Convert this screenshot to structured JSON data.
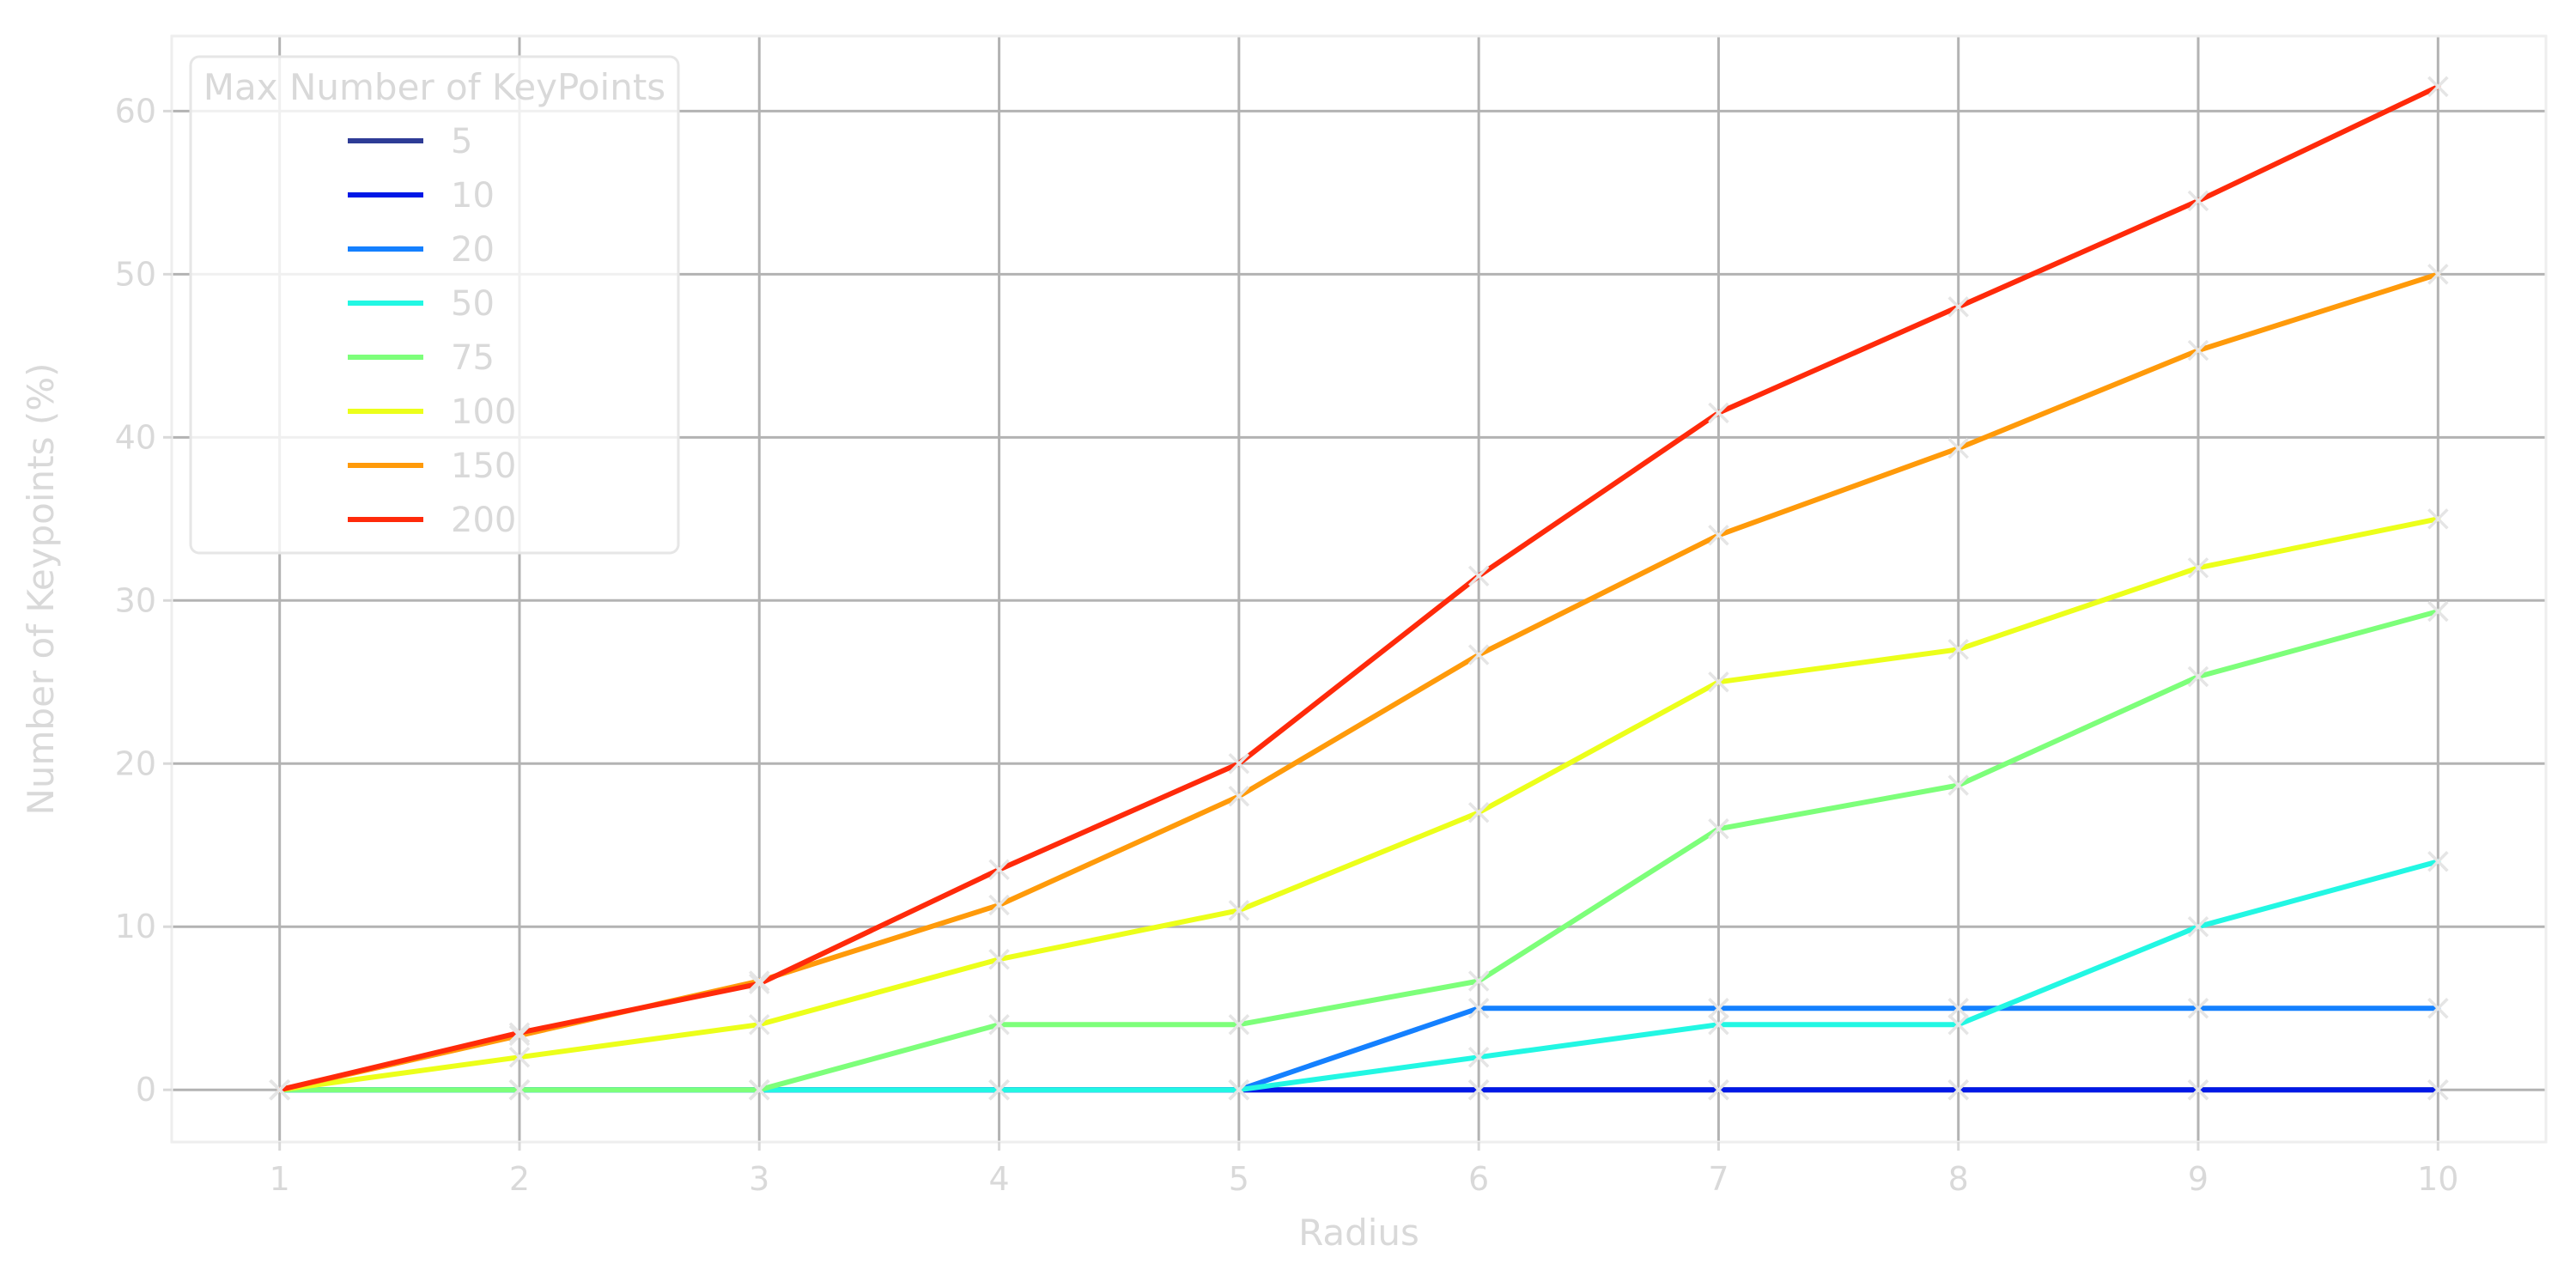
{
  "chart_data": {
    "type": "line",
    "title": "",
    "xlabel": "Radius",
    "ylabel": "Number of Keypoints (%)",
    "x": [
      1,
      2,
      3,
      4,
      5,
      6,
      7,
      8,
      9,
      10
    ],
    "x_ticks": [
      1,
      2,
      3,
      4,
      5,
      6,
      7,
      8,
      9,
      10
    ],
    "y_ticks": [
      0,
      10,
      20,
      30,
      40,
      50,
      60
    ],
    "xlim": [
      0.55,
      10.45
    ],
    "ylim": [
      -3.2,
      64.6
    ],
    "grid": true,
    "marker": "x",
    "legend": {
      "title": "Max Number of KeyPoints",
      "placement": "top-left"
    },
    "series": [
      {
        "name": "5",
        "color": "#2e3c96",
        "values": [
          0,
          0,
          0,
          0,
          0,
          0,
          0,
          0,
          0,
          0
        ]
      },
      {
        "name": "10",
        "color": "#0018e6",
        "values": [
          0,
          0,
          0,
          0,
          0,
          0,
          0,
          0,
          0,
          0
        ]
      },
      {
        "name": "20",
        "color": "#1480ff",
        "values": [
          0,
          0,
          0,
          0,
          0,
          5,
          5,
          5,
          5,
          5
        ]
      },
      {
        "name": "50",
        "color": "#22f7e3",
        "values": [
          0,
          0,
          0,
          0,
          0,
          2,
          4,
          4,
          10,
          14
        ]
      },
      {
        "name": "75",
        "color": "#7dff7a",
        "values": [
          0,
          0,
          0,
          4,
          4,
          6.67,
          16,
          18.67,
          25.33,
          29.33
        ]
      },
      {
        "name": "100",
        "color": "#ecff1a",
        "values": [
          0,
          2,
          4,
          8,
          11,
          17,
          25,
          27,
          32,
          35
        ]
      },
      {
        "name": "150",
        "color": "#ff9a0a",
        "values": [
          0,
          3.33,
          6.67,
          11.33,
          18,
          26.67,
          34,
          39.33,
          45.33,
          50
        ]
      },
      {
        "name": "200",
        "color": "#ff2a0a",
        "values": [
          0,
          3.5,
          6.5,
          13.5,
          20,
          31.5,
          41.5,
          48,
          54.5,
          61.5
        ]
      }
    ]
  }
}
